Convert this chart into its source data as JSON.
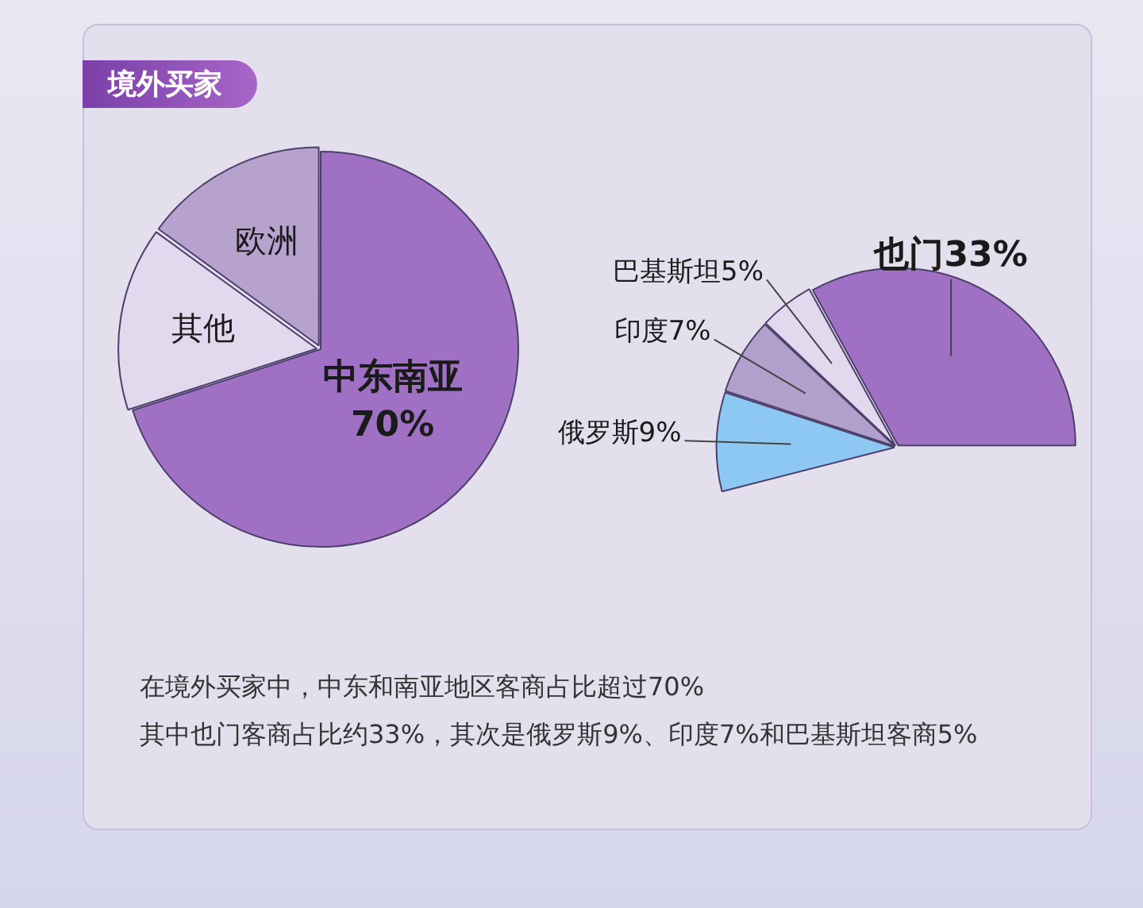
{
  "chart_data": [
    {
      "type": "pie",
      "title": "境外买家",
      "categories": [
        "中东南亚",
        "其他",
        "欧洲"
      ],
      "values": [
        70,
        15,
        15
      ],
      "colors": [
        "#a070c4",
        "#e2d9ee",
        "#b6a2cc"
      ],
      "value_labels": [
        "70%",
        null,
        null
      ],
      "legend": false,
      "annotations": [
        "在境外买家中，中东和南亚地区客商占比超过70%",
        "其中也门客商占比约33%，其次是俄罗斯9%、印度7%和巴基斯坦客商5%"
      ]
    },
    {
      "type": "pie",
      "categories": [
        "俄罗斯",
        "印度",
        "巴基斯坦",
        "也门"
      ],
      "values": [
        9,
        7,
        5,
        33
      ],
      "colors": [
        "#8cc8f2",
        "#b2a0cc",
        "#e2d9ee",
        "#a070c4"
      ],
      "value_labels": [
        "9%",
        "7%",
        "5%",
        "33%"
      ],
      "legend": false
    }
  ]
}
